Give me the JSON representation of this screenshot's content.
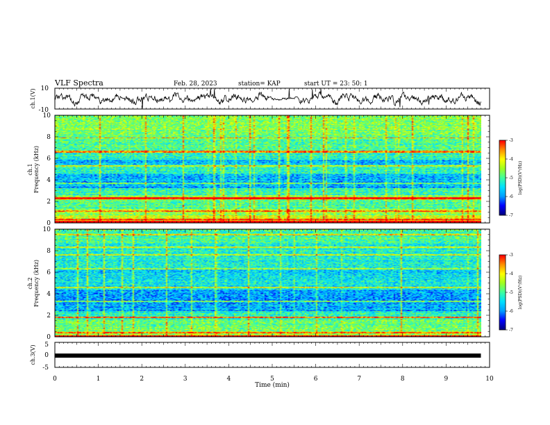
{
  "header": {
    "title": "VLF Spectra",
    "date": "Feb. 28, 2023",
    "station": "station= KAP",
    "start": "start  UT =   23: 50: 1"
  },
  "chart_data": [
    {
      "type": "line",
      "panel": "ch1-waveform",
      "ylabel": "ch.1(V)",
      "ylim": [
        -10,
        10
      ],
      "yticks": [
        10,
        -10
      ],
      "x_range_min": [
        0,
        9.8
      ],
      "amplitude_v": [
        -5,
        5
      ]
    },
    {
      "type": "heatmap",
      "panel": "ch1-spectrogram",
      "ylabel_lines": [
        "ch.1",
        "Frequency (kHz)"
      ],
      "ylim": [
        0,
        10
      ],
      "yticks": [
        0,
        2,
        4,
        6,
        8,
        10
      ],
      "colorbar": {
        "label": "log(PSD)(V²/Hz)",
        "ticks": [
          -3,
          -4,
          -5,
          -6,
          -7
        ],
        "range": [
          -7,
          -3
        ]
      },
      "bands_khz": [
        {
          "from": 0.0,
          "to": 0.7,
          "level": 0.7
        },
        {
          "from": 0.7,
          "to": 1.3,
          "level": 0.62
        },
        {
          "from": 1.3,
          "to": 2.1,
          "level": 0.5
        },
        {
          "from": 2.1,
          "to": 2.6,
          "level": 0.62
        },
        {
          "from": 2.6,
          "to": 3.2,
          "level": 0.46
        },
        {
          "from": 3.2,
          "to": 4.6,
          "level": 0.3
        },
        {
          "from": 4.6,
          "to": 5.4,
          "level": 0.44
        },
        {
          "from": 5.4,
          "to": 5.9,
          "level": 0.3
        },
        {
          "from": 5.9,
          "to": 6.7,
          "level": 0.45
        },
        {
          "from": 6.7,
          "to": 8.0,
          "level": 0.52
        },
        {
          "from": 8.0,
          "to": 10.0,
          "level": 0.58
        }
      ],
      "lines_khz": [
        0.35,
        1.1,
        2.3,
        3.7,
        5.3,
        6.6,
        7.9
      ],
      "strong_lines_khz": [
        0.1,
        2.3,
        6.6
      ]
    },
    {
      "type": "heatmap",
      "panel": "ch2-spectrogram",
      "ylabel_lines": [
        "ch.2",
        "Frequency (kHz)"
      ],
      "ylim": [
        0,
        10
      ],
      "yticks": [
        0,
        2,
        4,
        6,
        8,
        10
      ],
      "colorbar": {
        "label": "log(PSD)(V²/Hz)",
        "ticks": [
          -3,
          -4,
          -5,
          -6,
          -7
        ],
        "range": [
          -7,
          -3
        ]
      },
      "bands_khz": [
        {
          "from": 0.0,
          "to": 0.5,
          "level": 0.62
        },
        {
          "from": 0.5,
          "to": 1.6,
          "level": 0.55
        },
        {
          "from": 1.6,
          "to": 2.4,
          "level": 0.45
        },
        {
          "from": 2.4,
          "to": 4.4,
          "level": 0.28
        },
        {
          "from": 4.4,
          "to": 5.2,
          "level": 0.42
        },
        {
          "from": 5.2,
          "to": 6.4,
          "level": 0.36
        },
        {
          "from": 6.4,
          "to": 8.6,
          "level": 0.44
        },
        {
          "from": 8.6,
          "to": 10.0,
          "level": 0.48
        }
      ],
      "lines_khz": [
        0.4,
        1.8,
        3.3,
        4.6,
        6.3,
        7.6,
        8.3,
        9.5
      ],
      "strong_lines_khz": [
        0.05,
        1.8
      ]
    },
    {
      "type": "line",
      "panel": "ch3-signal",
      "ylabel": "ch.3(V)",
      "ylim": [
        -5,
        5
      ],
      "yticks": [
        5,
        0,
        -5
      ],
      "xlabel": "Time (min)",
      "xlim": [
        0,
        10
      ],
      "xticks": [
        0,
        1,
        2,
        3,
        4,
        5,
        6,
        7,
        8,
        9,
        10
      ],
      "constant_value_v": -0.3,
      "x_range_min": [
        0,
        9.8
      ]
    }
  ],
  "colors": {
    "colormap": [
      "#000080",
      "#0000ff",
      "#00a0ff",
      "#00e0ff",
      "#40ffa0",
      "#a0ff20",
      "#ffff00",
      "#ff9000",
      "#ff0000",
      "#ffffff"
    ],
    "trace": "#000000",
    "axes": "#000000"
  }
}
